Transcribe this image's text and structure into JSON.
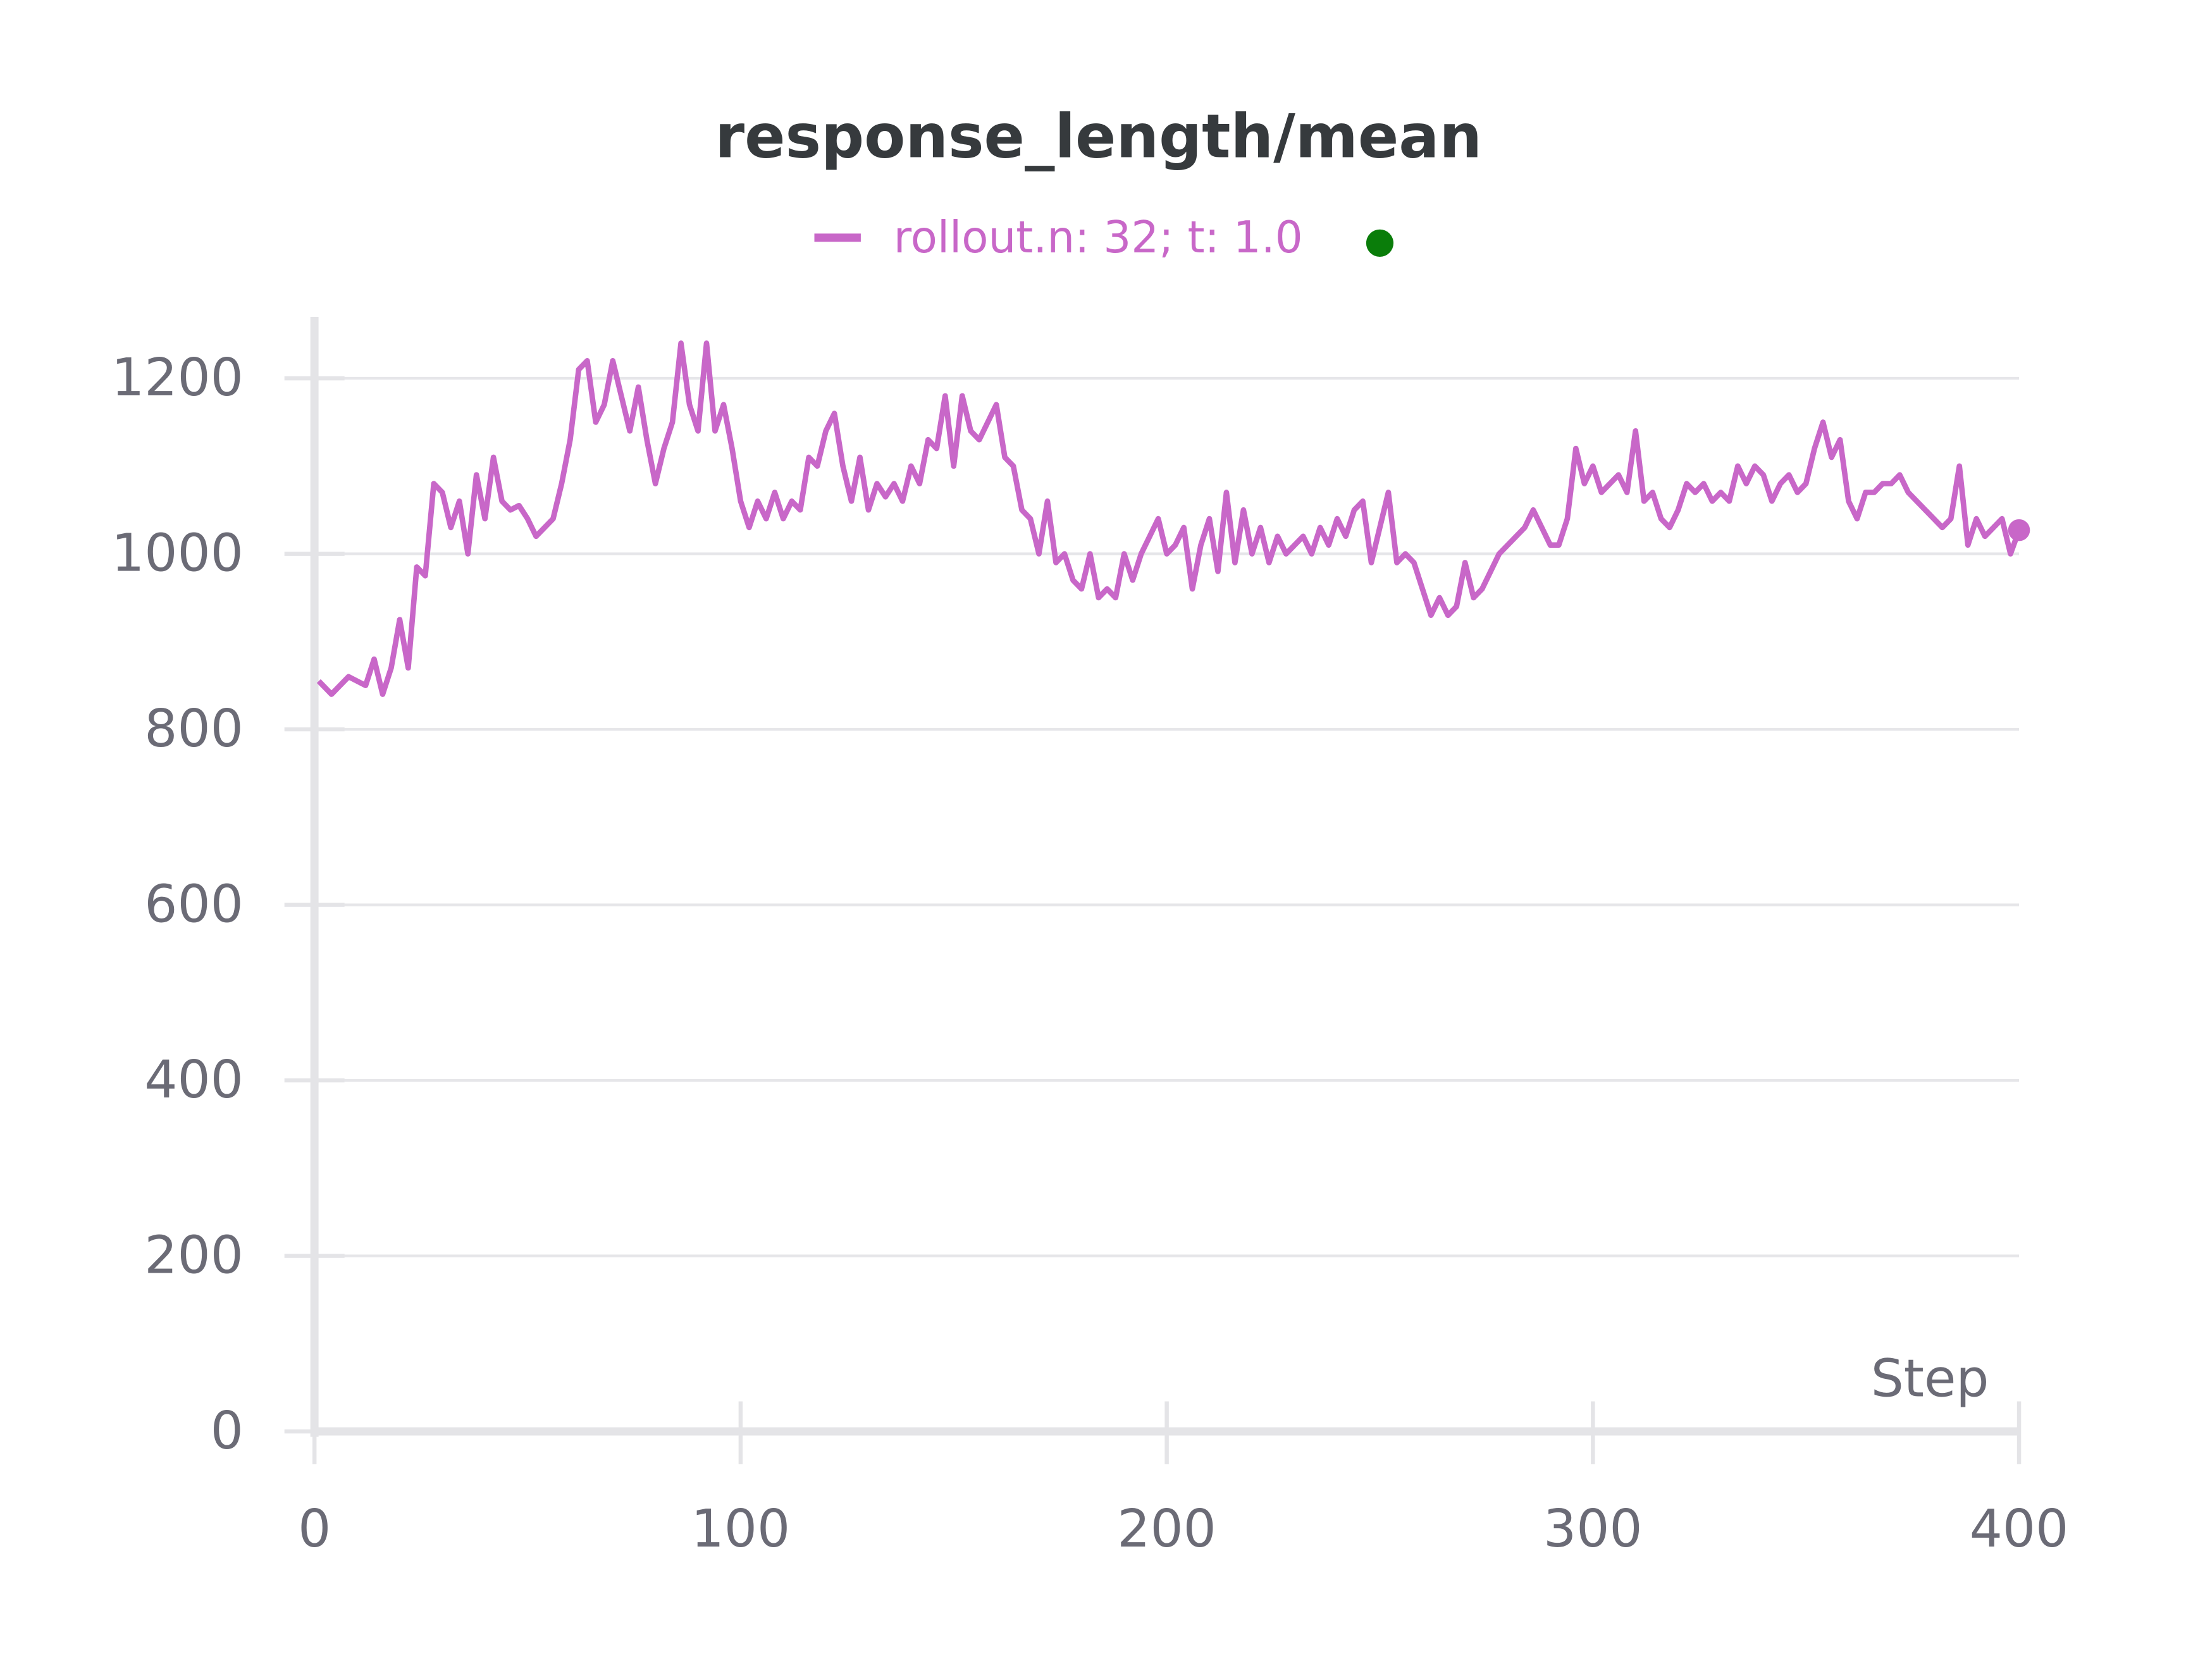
{
  "chart_data": {
    "type": "line",
    "title": "response_length/mean",
    "x_label": "Step",
    "xlim": [
      0,
      400
    ],
    "xticks": [
      0,
      100,
      200,
      300,
      400
    ],
    "ylim": [
      0,
      1270
    ],
    "yticks": [
      0,
      200,
      400,
      600,
      800,
      1000,
      1200
    ],
    "grid": true,
    "legend_status_color": "#0a7d0a",
    "x": [
      1,
      4,
      8,
      12,
      14,
      16,
      18,
      20,
      22,
      24,
      26,
      28,
      30,
      32,
      34,
      36,
      38,
      40,
      42,
      44,
      46,
      48,
      50,
      52,
      54,
      56,
      58,
      60,
      62,
      64,
      66,
      68,
      70,
      72,
      74,
      76,
      78,
      80,
      82,
      84,
      86,
      88,
      90,
      92,
      94,
      96,
      98,
      100,
      102,
      104,
      106,
      108,
      110,
      112,
      114,
      116,
      118,
      120,
      122,
      124,
      126,
      128,
      130,
      132,
      134,
      136,
      138,
      140,
      142,
      144,
      146,
      148,
      150,
      152,
      154,
      156,
      158,
      160,
      162,
      164,
      166,
      168,
      170,
      172,
      174,
      176,
      178,
      180,
      182,
      184,
      186,
      188,
      190,
      192,
      194,
      196,
      198,
      200,
      202,
      204,
      206,
      208,
      210,
      212,
      214,
      216,
      218,
      220,
      222,
      224,
      226,
      228,
      230,
      232,
      234,
      236,
      238,
      240,
      242,
      244,
      246,
      248,
      250,
      252,
      254,
      256,
      258,
      260,
      262,
      264,
      266,
      268,
      270,
      272,
      274,
      276,
      278,
      280,
      282,
      284,
      286,
      288,
      290,
      292,
      294,
      296,
      298,
      300,
      302,
      304,
      306,
      308,
      310,
      312,
      314,
      316,
      318,
      320,
      322,
      324,
      326,
      328,
      330,
      332,
      334,
      336,
      338,
      340,
      342,
      344,
      346,
      348,
      350,
      352,
      354,
      356,
      358,
      360,
      362,
      364,
      366,
      368,
      370,
      372,
      374,
      376,
      378,
      380,
      382,
      384,
      386,
      388,
      390,
      392,
      394,
      396,
      398,
      400
    ],
    "series": [
      {
        "name": "rollout.n: 32; t: 1.0",
        "color": "#c867c8",
        "values": [
          855,
          840,
          860,
          850,
          880,
          840,
          870,
          925,
          870,
          985,
          975,
          1080,
          1070,
          1030,
          1060,
          1000,
          1090,
          1040,
          1110,
          1060,
          1050,
          1055,
          1040,
          1020,
          1030,
          1040,
          1080,
          1130,
          1210,
          1220,
          1150,
          1170,
          1220,
          1180,
          1140,
          1190,
          1130,
          1080,
          1120,
          1150,
          1240,
          1170,
          1140,
          1240,
          1140,
          1170,
          1120,
          1060,
          1030,
          1060,
          1040,
          1070,
          1040,
          1060,
          1050,
          1110,
          1100,
          1140,
          1160,
          1100,
          1060,
          1110,
          1050,
          1080,
          1065,
          1080,
          1060,
          1100,
          1080,
          1130,
          1120,
          1180,
          1100,
          1180,
          1140,
          1130,
          1150,
          1170,
          1110,
          1100,
          1050,
          1040,
          1000,
          1060,
          990,
          1000,
          970,
          960,
          1000,
          950,
          960,
          950,
          1000,
          970,
          1000,
          1020,
          1040,
          1000,
          1010,
          1030,
          960,
          1010,
          1040,
          980,
          1070,
          990,
          1050,
          1000,
          1030,
          990,
          1020,
          1000,
          1010,
          1020,
          1000,
          1030,
          1010,
          1040,
          1020,
          1050,
          1060,
          990,
          1030,
          1070,
          990,
          1000,
          990,
          960,
          930,
          950,
          930,
          940,
          990,
          950,
          960,
          980,
          1000,
          1010,
          1020,
          1030,
          1050,
          1030,
          1010,
          1010,
          1040,
          1120,
          1080,
          1100,
          1070,
          1080,
          1090,
          1070,
          1140,
          1060,
          1070,
          1040,
          1030,
          1050,
          1080,
          1070,
          1080,
          1060,
          1070,
          1060,
          1100,
          1080,
          1100,
          1090,
          1060,
          1080,
          1090,
          1070,
          1080,
          1120,
          1150,
          1110,
          1130,
          1060,
          1040,
          1070,
          1070,
          1080,
          1080,
          1090,
          1070,
          1060,
          1050,
          1040,
          1030,
          1040,
          1100,
          1010,
          1040,
          1020,
          1030,
          1040,
          1000,
          1027
        ]
      }
    ]
  }
}
